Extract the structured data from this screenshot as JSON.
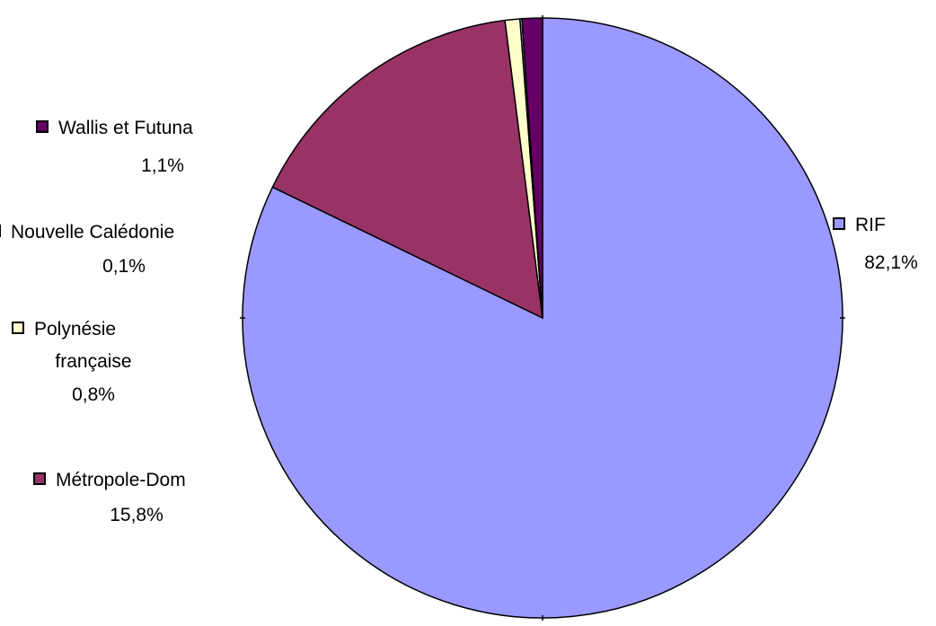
{
  "chart_data": {
    "type": "pie",
    "series": [
      {
        "name": "RIF",
        "value": 82.1,
        "label": "82,1%",
        "color": "#9999FF"
      },
      {
        "name": "Métropole-Dom",
        "value": 15.8,
        "label": "15,8%",
        "color": "#993366"
      },
      {
        "name": "Polynésie française",
        "value": 0.8,
        "label": "0,8%",
        "color": "#FFFFCC"
      },
      {
        "name": "Nouvelle Calédonie",
        "value": 0.1,
        "label": "0,1%",
        "color": "#CCFFFF"
      },
      {
        "name": "Wallis et Futuna",
        "value": 1.1,
        "label": "1,1%",
        "color": "#660066"
      }
    ],
    "start_angle_deg": 0,
    "direction": "clockwise",
    "legend": "none",
    "data_labels": "outside"
  }
}
